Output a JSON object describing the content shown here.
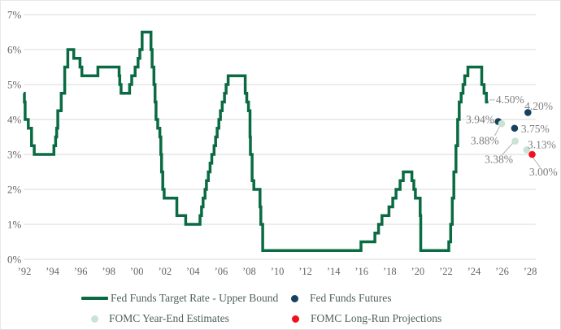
{
  "legend": {
    "items": [
      {
        "label": "Fed Funds Target Rate - Upper Bound",
        "swatch": "line",
        "color": "#0a6b42",
        "name": "legend-fed-funds-target-rate"
      },
      {
        "label": "Fed Funds Futures",
        "swatch": "dot",
        "color": "#16425e",
        "name": "legend-fed-funds-futures"
      },
      {
        "label": "FOMC Year-End Estimates",
        "swatch": "dot",
        "color": "#c9e3d4",
        "name": "legend-fomc-year-end-estimates"
      },
      {
        "label": "FOMC Long-Run Projections",
        "swatch": "dot",
        "color": "#f2101f",
        "name": "legend-fomc-long-run-projections"
      }
    ]
  },
  "chart_data": {
    "type": "line",
    "title": "",
    "grid": true,
    "x_axis": {
      "ticks": [
        1992,
        1994,
        1996,
        1998,
        2000,
        2002,
        2004,
        2006,
        2008,
        2010,
        2012,
        2014,
        2016,
        2018,
        2020,
        2022,
        2024,
        2026,
        2028
      ],
      "tick_labels": [
        "’92",
        "’94",
        "’96",
        "’98",
        "’00",
        "’02",
        "’04",
        "’06",
        "’08",
        "’10",
        "’12",
        "’14",
        "’16",
        "’18",
        "’20",
        "’22",
        "’24",
        "’26",
        "’28"
      ],
      "range": [
        1991.8,
        2028.8
      ]
    },
    "y_axis": {
      "ticks": [
        0,
        1,
        2,
        3,
        4,
        5,
        6,
        7
      ],
      "tick_labels": [
        "0%",
        "1%",
        "2%",
        "3%",
        "4%",
        "5%",
        "6%",
        "7%"
      ],
      "range": [
        0,
        7
      ]
    },
    "series": [
      {
        "name": "Fed Funds Target Rate - Upper Bound",
        "type": "step_line",
        "color": "#0a6b42",
        "points": [
          [
            1991.95,
            4.75
          ],
          [
            1992.0,
            4.5
          ],
          [
            1992.05,
            4.0
          ],
          [
            1992.28,
            3.75
          ],
          [
            1992.51,
            3.25
          ],
          [
            1992.7,
            3.0
          ],
          [
            1994.1,
            3.25
          ],
          [
            1994.22,
            3.5
          ],
          [
            1994.3,
            3.75
          ],
          [
            1994.38,
            4.25
          ],
          [
            1994.62,
            4.75
          ],
          [
            1994.87,
            5.5
          ],
          [
            1995.09,
            6.0
          ],
          [
            1995.51,
            5.75
          ],
          [
            1995.96,
            5.5
          ],
          [
            1996.09,
            5.25
          ],
          [
            1997.23,
            5.5
          ],
          [
            1998.74,
            5.25
          ],
          [
            1998.79,
            5.0
          ],
          [
            1998.88,
            4.75
          ],
          [
            1999.49,
            5.0
          ],
          [
            1999.64,
            5.25
          ],
          [
            1999.88,
            5.5
          ],
          [
            2000.09,
            5.75
          ],
          [
            2000.22,
            6.0
          ],
          [
            2000.38,
            6.5
          ],
          [
            2001.01,
            6.0
          ],
          [
            2001.09,
            5.5
          ],
          [
            2001.22,
            5.0
          ],
          [
            2001.3,
            4.5
          ],
          [
            2001.37,
            4.0
          ],
          [
            2001.49,
            3.75
          ],
          [
            2001.64,
            3.5
          ],
          [
            2001.71,
            3.0
          ],
          [
            2001.76,
            2.5
          ],
          [
            2001.85,
            2.0
          ],
          [
            2001.95,
            1.75
          ],
          [
            2002.85,
            1.25
          ],
          [
            2003.48,
            1.0
          ],
          [
            2004.5,
            1.25
          ],
          [
            2004.61,
            1.5
          ],
          [
            2004.72,
            1.75
          ],
          [
            2004.86,
            2.0
          ],
          [
            2004.96,
            2.25
          ],
          [
            2005.09,
            2.5
          ],
          [
            2005.22,
            2.75
          ],
          [
            2005.34,
            3.0
          ],
          [
            2005.5,
            3.25
          ],
          [
            2005.61,
            3.5
          ],
          [
            2005.72,
            3.75
          ],
          [
            2005.84,
            4.0
          ],
          [
            2005.95,
            4.25
          ],
          [
            2006.08,
            4.5
          ],
          [
            2006.24,
            4.75
          ],
          [
            2006.36,
            5.0
          ],
          [
            2006.5,
            5.25
          ],
          [
            2007.72,
            4.75
          ],
          [
            2007.83,
            4.5
          ],
          [
            2007.95,
            4.25
          ],
          [
            2008.06,
            3.5
          ],
          [
            2008.09,
            3.0
          ],
          [
            2008.21,
            2.25
          ],
          [
            2008.33,
            2.0
          ],
          [
            2008.77,
            1.5
          ],
          [
            2008.83,
            1.0
          ],
          [
            2008.96,
            0.25
          ],
          [
            2015.96,
            0.5
          ],
          [
            2016.95,
            0.75
          ],
          [
            2017.21,
            1.0
          ],
          [
            2017.45,
            1.25
          ],
          [
            2017.95,
            1.5
          ],
          [
            2018.22,
            1.75
          ],
          [
            2018.45,
            2.0
          ],
          [
            2018.74,
            2.25
          ],
          [
            2018.97,
            2.5
          ],
          [
            2019.58,
            2.25
          ],
          [
            2019.72,
            2.0
          ],
          [
            2019.83,
            1.75
          ],
          [
            2020.17,
            1.25
          ],
          [
            2020.21,
            0.25
          ],
          [
            2022.21,
            0.5
          ],
          [
            2022.34,
            1.0
          ],
          [
            2022.46,
            1.75
          ],
          [
            2022.57,
            2.5
          ],
          [
            2022.72,
            3.25
          ],
          [
            2022.84,
            4.0
          ],
          [
            2022.95,
            4.5
          ],
          [
            2023.09,
            4.75
          ],
          [
            2023.22,
            5.0
          ],
          [
            2023.34,
            5.25
          ],
          [
            2023.57,
            5.5
          ],
          [
            2024.55,
            5.0
          ],
          [
            2024.72,
            4.75
          ],
          [
            2024.88,
            4.5
          ],
          [
            2025.02,
            4.5
          ]
        ]
      },
      {
        "name": "Fed Funds Futures",
        "type": "scatter",
        "color": "#16425e",
        "points": [
          [
            2025.73,
            3.94
          ],
          [
            2026.89,
            3.75
          ],
          [
            2027.84,
            4.2
          ]
        ]
      },
      {
        "name": "FOMC Year-End Estimates",
        "type": "scatter",
        "color": "#c9e3d4",
        "points": [
          [
            2025.97,
            3.88
          ],
          [
            2026.93,
            3.38
          ],
          [
            2027.76,
            3.13
          ]
        ]
      },
      {
        "name": "FOMC Long-Run Projections",
        "type": "scatter",
        "color": "#f2101f",
        "points": [
          [
            2028.14,
            3.0
          ]
        ]
      }
    ],
    "point_labels": [
      {
        "text": "4.50%",
        "year": 2025.56,
        "value": 4.46,
        "anchor": "start"
      },
      {
        "text": "4.20%",
        "year": 2027.6,
        "value": 4.28,
        "anchor": "start"
      },
      {
        "text": "3.94%",
        "year": 2025.45,
        "value": 3.89,
        "anchor": "end"
      },
      {
        "text": "3.75%",
        "year": 2027.35,
        "value": 3.63,
        "anchor": "start"
      },
      {
        "text": "3.88%",
        "year": 2025.78,
        "value": 3.29,
        "anchor": "end"
      },
      {
        "text": "3.13%",
        "year": 2027.82,
        "value": 3.18,
        "anchor": "start"
      },
      {
        "text": "3.38%",
        "year": 2026.78,
        "value": 2.76,
        "anchor": "end"
      },
      {
        "text": "3.00%",
        "year": 2027.93,
        "value": 2.39,
        "anchor": "start"
      }
    ],
    "leader_lines": [
      [
        2025.1,
        4.56,
        2025.5,
        4.56
      ],
      [
        2025.12,
        3.9,
        2025.57,
        3.93
      ],
      [
        2025.47,
        3.53,
        2025.86,
        3.83
      ],
      [
        2025.99,
        2.98,
        2026.8,
        3.34
      ],
      [
        2028.2,
        2.91,
        2028.73,
        2.62
      ]
    ],
    "colors": {
      "grid": "#dadada",
      "axis_text": "#646464",
      "label_text": "#7e7e7e",
      "leader": "#b3b3b3"
    }
  }
}
